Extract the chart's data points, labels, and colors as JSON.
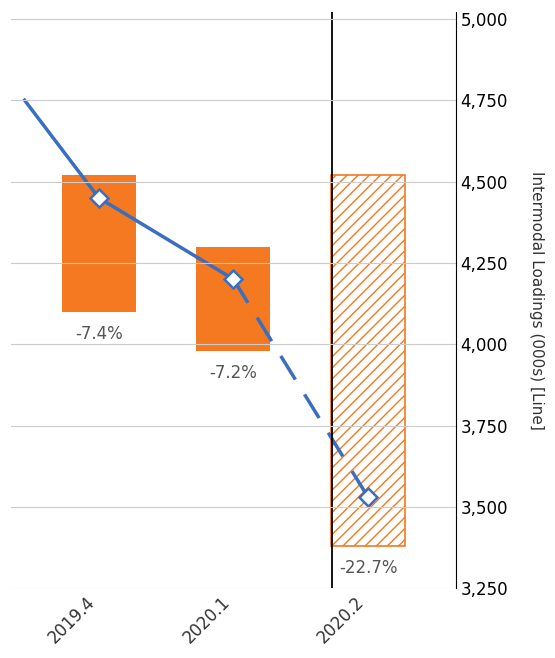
{
  "categories": [
    "2019.4",
    "2020.1",
    "2020.2"
  ],
  "bar_tops": [
    4520,
    4300,
    4520
  ],
  "bar_bottoms": [
    4100,
    3980,
    3380
  ],
  "line_values": [
    4750,
    4450,
    4200,
    3530
  ],
  "line_x": [
    -0.55,
    0,
    1,
    2
  ],
  "pct_labels": [
    "-7.4%",
    "-7.2%",
    "-22.7%"
  ],
  "bar_colors_solid": [
    "#F47920",
    "#F47920"
  ],
  "bar_color_hatch": "#F47920",
  "hatch_pattern": "///",
  "line_color": "#3A6EC0",
  "marker_color": "#3A6EC0",
  "ylabel": "Intermodal Loadings (000s) [Line]",
  "ylim_min": 3250,
  "ylim_max": 5000,
  "yticks": [
    3250,
    3500,
    3750,
    4000,
    4250,
    4500,
    4750,
    5000
  ],
  "fig_width": 5.55,
  "fig_height": 6.58,
  "dpi": 100,
  "bar_width": 0.55,
  "label_fontsize": 12,
  "tick_fontsize": 12,
  "ylabel_fontsize": 11
}
